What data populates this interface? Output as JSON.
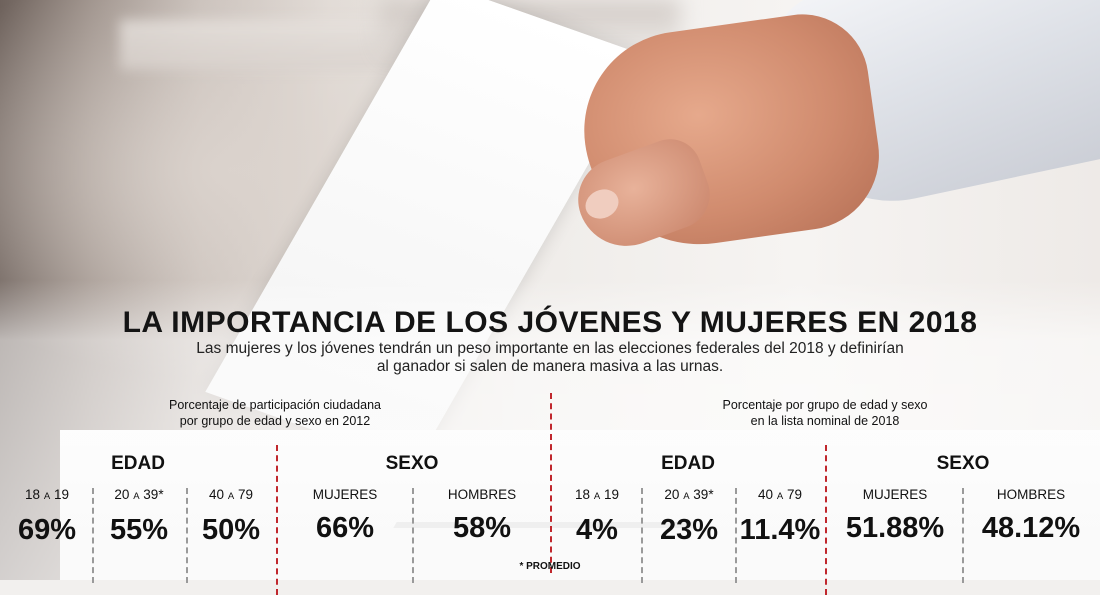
{
  "title": "LA IMPORTANCIA DE LOS JÓVENES Y MUJERES EN 2018",
  "subtitle_line1": "Las mujeres y los jóvenes tendrán un peso importante en las elecciones federales del 2018 y definirían",
  "subtitle_line2": "al ganador si salen de manera masiva a las urnas.",
  "left_panel": {
    "caption_line1": "Porcentaje de participación ciudadana",
    "caption_line2": "por grupo de edad y sexo en 2012",
    "edad_label": "EDAD",
    "sexo_label": "SEXO",
    "age_groups": [
      {
        "from": "18",
        "sep": "A",
        "to": "19",
        "mark": "",
        "value": "69%"
      },
      {
        "from": "20",
        "sep": "A",
        "to": "39",
        "mark": "*",
        "value": "55%"
      },
      {
        "from": "40",
        "sep": "A",
        "to": "79",
        "mark": "",
        "value": "50%"
      }
    ],
    "sex_groups": [
      {
        "label": "MUJERES",
        "value": "66%"
      },
      {
        "label": "HOMBRES",
        "value": "58%"
      }
    ]
  },
  "right_panel": {
    "caption_line1": "Porcentaje por grupo de edad y sexo",
    "caption_line2": "en la lista nominal de 2018",
    "edad_label": "EDAD",
    "sexo_label": "SEXO",
    "age_groups": [
      {
        "from": "18",
        "sep": "A",
        "to": "19",
        "mark": "",
        "value": "4%"
      },
      {
        "from": "20",
        "sep": "A",
        "to": "39",
        "mark": "*",
        "value": "23%"
      },
      {
        "from": "40",
        "sep": "A",
        "to": "79",
        "mark": "",
        "value": "11.4%"
      }
    ],
    "sex_groups": [
      {
        "label": "MUJERES",
        "value": "51.88%"
      },
      {
        "label": "HOMBRES",
        "value": "48.12%"
      }
    ]
  },
  "footnote": "* PROMEDIO",
  "colors": {
    "divider_red": "#c0272d",
    "divider_gray": "#9a9a9a",
    "text": "#111111"
  }
}
